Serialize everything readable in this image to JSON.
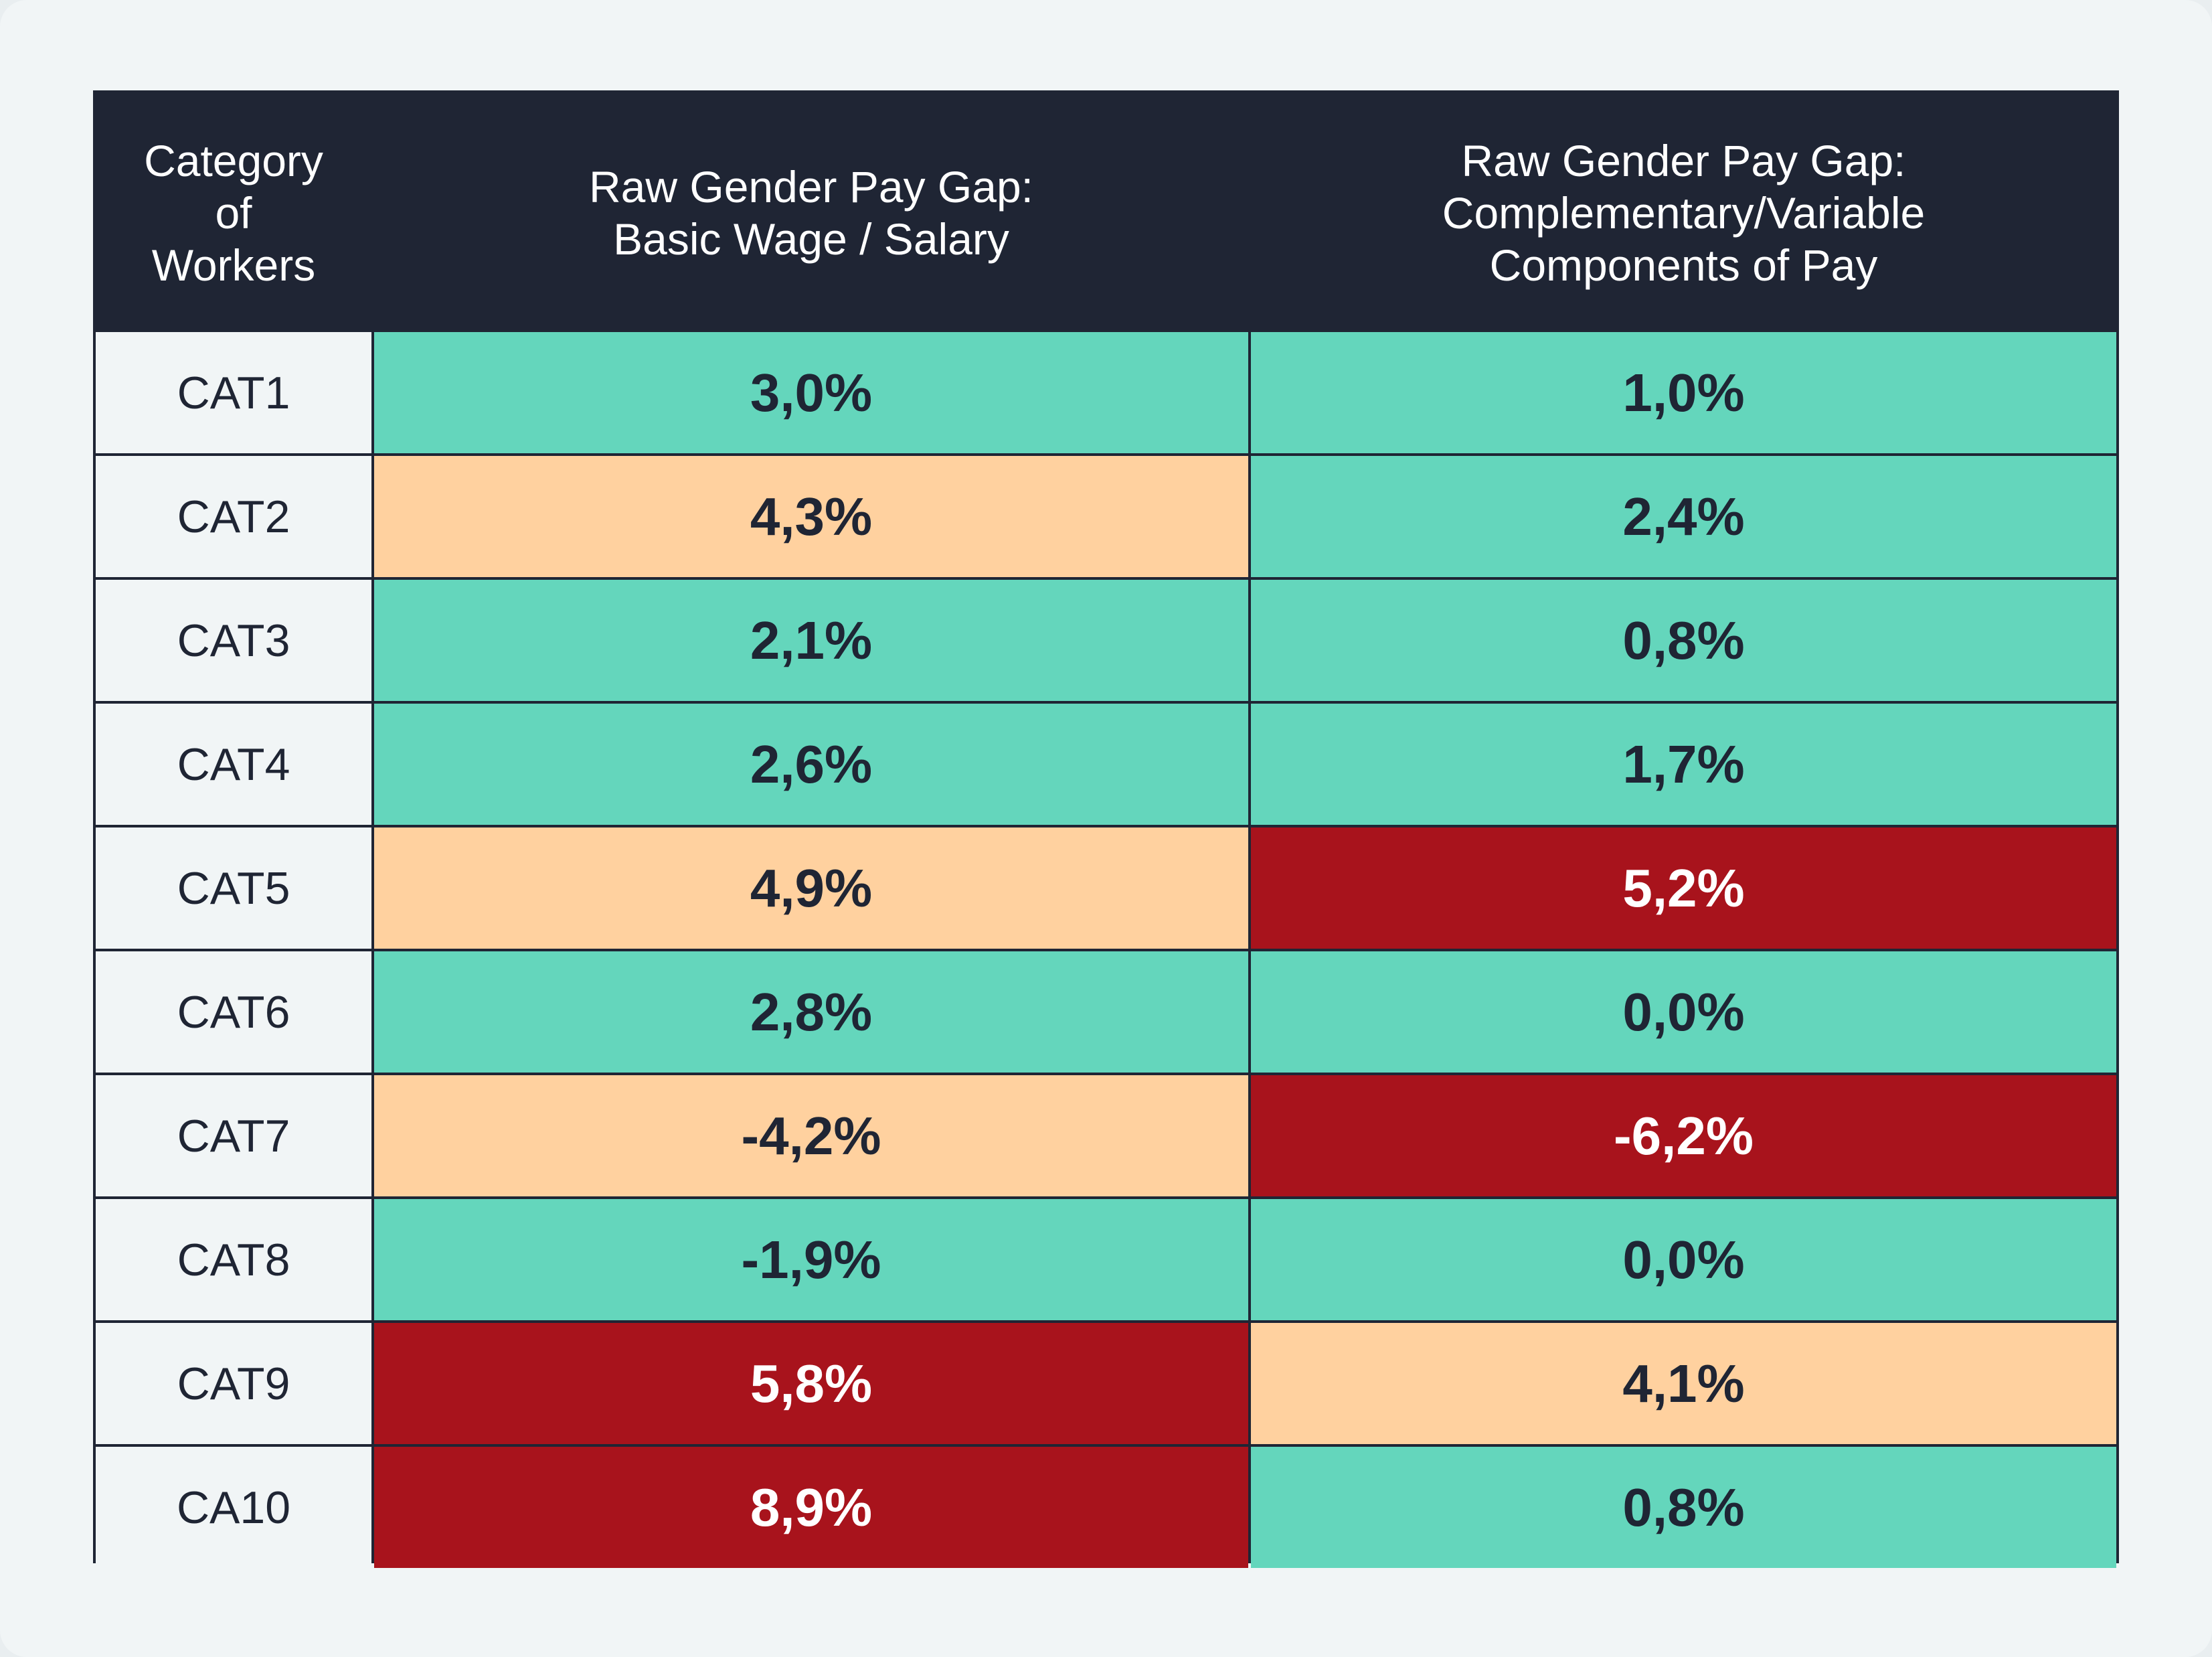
{
  "colors": {
    "low": "#64d6bc",
    "medium": "#ffd19f",
    "high": "#a8131c",
    "dark_text": "#1f2534",
    "light_text": "#ffffff"
  },
  "chart_data": {
    "type": "table",
    "columns": [
      "Category\nof\nWorkers",
      "Raw Gender Pay Gap:\nBasic Wage / Salary",
      "Raw Gender Pay Gap:\nComplementary/Variable\nComponents of Pay"
    ],
    "rows": [
      {
        "category": "CAT1",
        "basic": "3,0%",
        "basic_level": "low",
        "variable": "1,0%",
        "variable_level": "low"
      },
      {
        "category": "CAT2",
        "basic": "4,3%",
        "basic_level": "medium",
        "variable": "2,4%",
        "variable_level": "low"
      },
      {
        "category": "CAT3",
        "basic": "2,1%",
        "basic_level": "low",
        "variable": "0,8%",
        "variable_level": "low"
      },
      {
        "category": "CAT4",
        "basic": "2,6%",
        "basic_level": "low",
        "variable": "1,7%",
        "variable_level": "low"
      },
      {
        "category": "CAT5",
        "basic": "4,9%",
        "basic_level": "medium",
        "variable": "5,2%",
        "variable_level": "high"
      },
      {
        "category": "CAT6",
        "basic": "2,8%",
        "basic_level": "low",
        "variable": "0,0%",
        "variable_level": "low"
      },
      {
        "category": "CAT7",
        "basic": "-4,2%",
        "basic_level": "medium",
        "variable": "-6,2%",
        "variable_level": "high"
      },
      {
        "category": "CAT8",
        "basic": "-1,9%",
        "basic_level": "low",
        "variable": "0,0%",
        "variable_level": "low"
      },
      {
        "category": "CAT9",
        "basic": "5,8%",
        "basic_level": "high",
        "variable": "4,1%",
        "variable_level": "medium"
      },
      {
        "category": "CA10",
        "basic": "8,9%",
        "basic_level": "high",
        "variable": "0,8%",
        "variable_level": "low"
      }
    ]
  }
}
